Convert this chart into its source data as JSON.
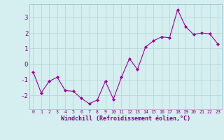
{
  "x": [
    0,
    1,
    2,
    3,
    4,
    5,
    6,
    7,
    8,
    9,
    10,
    11,
    12,
    13,
    14,
    15,
    16,
    17,
    18,
    19,
    20,
    21,
    22,
    23
  ],
  "y": [
    -0.5,
    -1.85,
    -1.1,
    -0.85,
    -1.7,
    -1.75,
    -2.2,
    -2.55,
    -2.3,
    -1.1,
    -2.25,
    -0.85,
    0.35,
    -0.35,
    1.1,
    1.5,
    1.75,
    1.7,
    3.5,
    2.4,
    1.9,
    2.0,
    1.95,
    1.3
  ],
  "line_color": "#990099",
  "marker": "D",
  "marker_size": 2.0,
  "bg_color": "#d5eef0",
  "grid_color": "#b8d8dc",
  "xlabel": "Windchill (Refroidissement éolien,°C)",
  "ylabel_ticks": [
    -2,
    -1,
    0,
    1,
    2,
    3
  ],
  "xlim": [
    -0.5,
    23.5
  ],
  "ylim": [
    -2.9,
    3.85
  ],
  "xticks": [
    0,
    1,
    2,
    3,
    4,
    5,
    6,
    7,
    8,
    9,
    10,
    11,
    12,
    13,
    14,
    15,
    16,
    17,
    18,
    19,
    20,
    21,
    22,
    23
  ],
  "xtick_labels": [
    "0",
    "1",
    "2",
    "3",
    "4",
    "5",
    "6",
    "7",
    "8",
    "9",
    "10",
    "11",
    "12",
    "13",
    "14",
    "15",
    "16",
    "17",
    "18",
    "19",
    "20",
    "21",
    "22",
    "23"
  ],
  "xlabel_fontsize": 6.0,
  "xtick_fontsize": 4.8,
  "ytick_fontsize": 6.5,
  "linewidth": 0.8
}
